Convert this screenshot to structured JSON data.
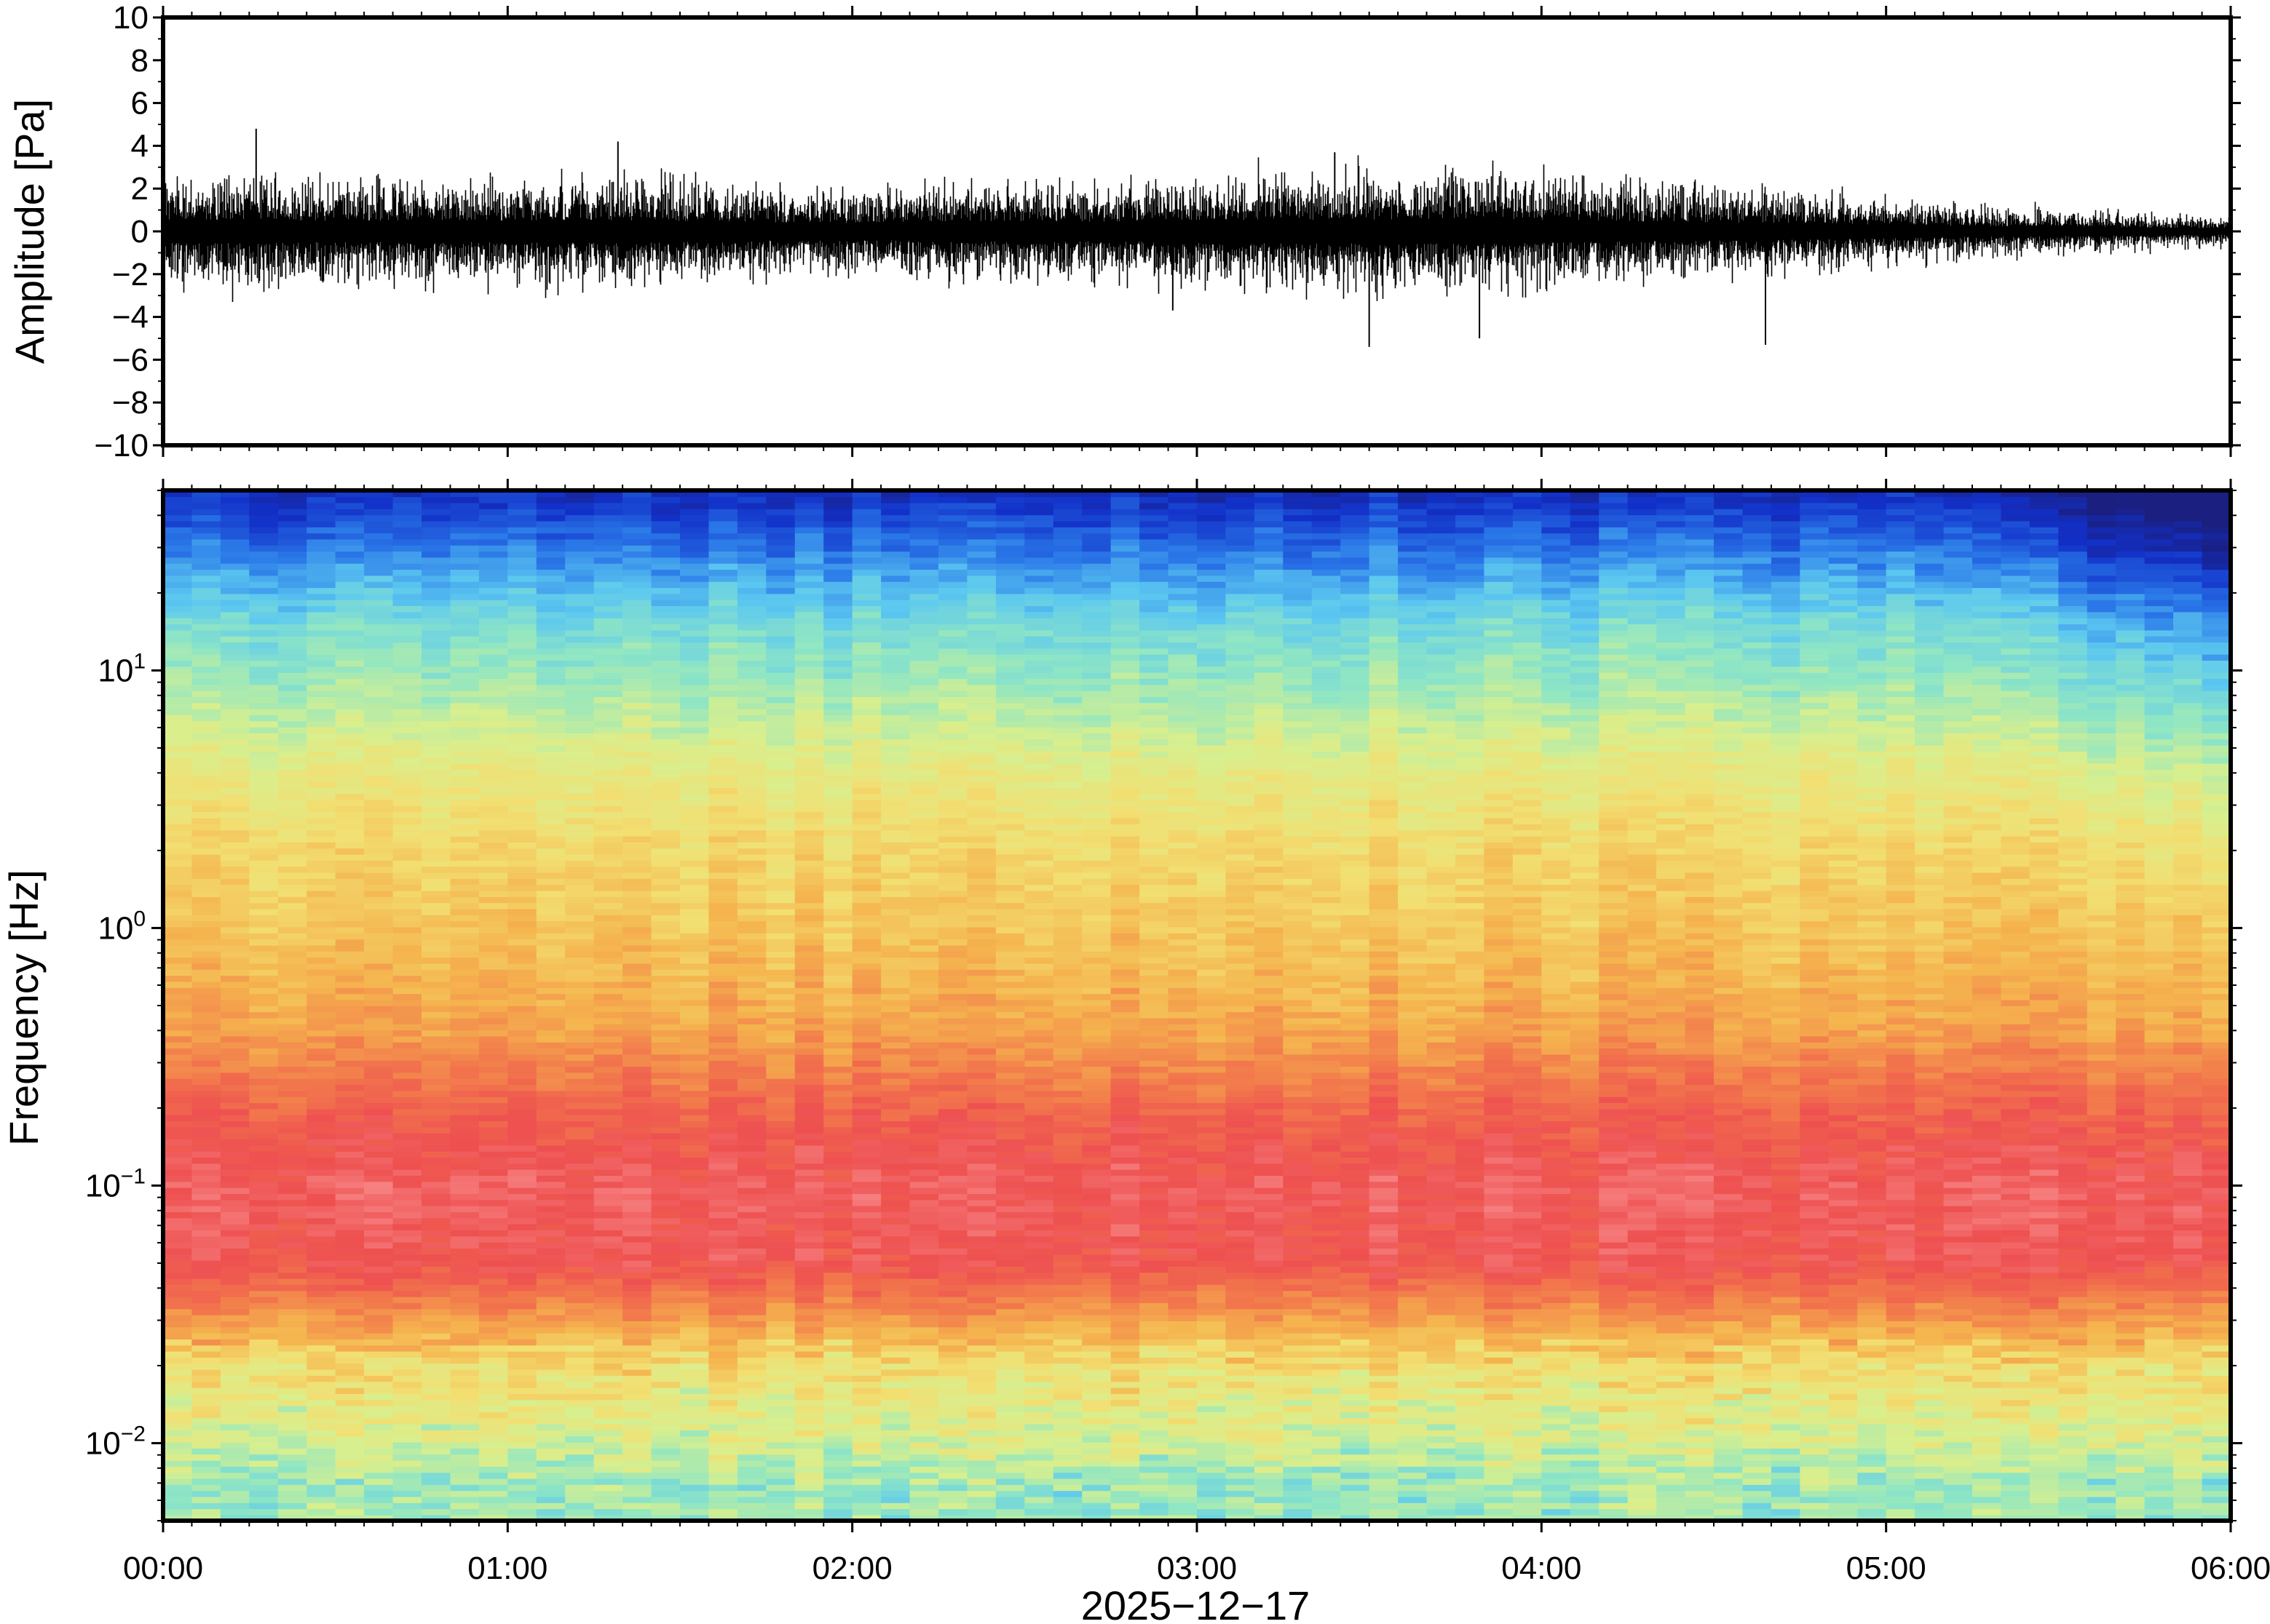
{
  "chart_data": [
    {
      "type": "line",
      "ylabel": "Amplitude [Pa]",
      "ylim": [
        -10,
        10
      ],
      "yticks": [
        "10",
        "8",
        "6",
        "4",
        "2",
        "0",
        "−2",
        "−4",
        "−6",
        "−8",
        "−10"
      ],
      "ytick_values": [
        10,
        8,
        6,
        4,
        2,
        0,
        -2,
        -4,
        -6,
        -8,
        -10
      ],
      "xlim_hours": [
        0,
        6
      ],
      "series": [
        {
          "envelope_hours": [
            0,
            0.25,
            0.5,
            0.75,
            1,
            1.25,
            1.5,
            1.75,
            2,
            2.25,
            2.5,
            2.75,
            3,
            3.25,
            3.5,
            3.75,
            4,
            4.25,
            4.5,
            4.75,
            5,
            5.25,
            5.5,
            5.75,
            6
          ],
          "typical_amplitude_pa": [
            1.5,
            1.6,
            1.4,
            1.4,
            1.4,
            1.5,
            1.4,
            1.2,
            1.1,
            1.3,
            1.3,
            1.3,
            1.5,
            1.5,
            1.6,
            1.6,
            1.5,
            1.3,
            1.2,
            1.1,
            0.9,
            0.7,
            0.6,
            0.5,
            0.4
          ],
          "peaks": [
            {
              "t_hours": 0.27,
              "value": 4.8
            },
            {
              "t_hours": 1.32,
              "value": 4.2
            },
            {
              "t_hours": 3.5,
              "value": -5.4
            },
            {
              "t_hours": 3.82,
              "value": -5.0
            },
            {
              "t_hours": 4.65,
              "value": -5.3
            },
            {
              "t_hours": 3.4,
              "value": 3.7
            },
            {
              "t_hours": 2.93,
              "value": -3.7
            }
          ]
        }
      ]
    },
    {
      "type": "heatmap",
      "ylabel": "Frequency [Hz]",
      "yscale": "log",
      "ylim_hz": [
        0.005,
        50
      ],
      "yticks": [
        {
          "base": "10",
          "exp": "1",
          "value": 10
        },
        {
          "base": "10",
          "exp": "0",
          "value": 1
        },
        {
          "base": "10",
          "exp": "−1",
          "value": 0.1
        },
        {
          "base": "10",
          "exp": "−2",
          "value": 0.01
        }
      ],
      "xlabel": "2025−12−17",
      "xticks": [
        "00:00",
        "01:00",
        "02:00",
        "03:00",
        "04:00",
        "05:00",
        "06:00"
      ],
      "xlim_hours": [
        0,
        6
      ],
      "colormap": [
        "#1a1f80",
        "#1230c8",
        "#2a78e8",
        "#5cc8f0",
        "#8fe6c4",
        "#d8ef8e",
        "#f2df72",
        "#f5b44e",
        "#f27a4c",
        "#ee5050",
        "#f88888"
      ],
      "power_levels_by_frequency": [
        {
          "freq_hz": 50,
          "level": 0.08
        },
        {
          "freq_hz": 30,
          "level": 0.2
        },
        {
          "freq_hz": 15,
          "level": 0.36
        },
        {
          "freq_hz": 8,
          "level": 0.44
        },
        {
          "freq_hz": 4,
          "level": 0.55
        },
        {
          "freq_hz": 2,
          "level": 0.62
        },
        {
          "freq_hz": 1,
          "level": 0.66
        },
        {
          "freq_hz": 0.4,
          "level": 0.73
        },
        {
          "freq_hz": 0.2,
          "level": 0.85
        },
        {
          "freq_hz": 0.1,
          "level": 0.93
        },
        {
          "freq_hz": 0.05,
          "level": 0.9
        },
        {
          "freq_hz": 0.03,
          "level": 0.74
        },
        {
          "freq_hz": 0.02,
          "level": 0.6
        },
        {
          "freq_hz": 0.01,
          "level": 0.5
        },
        {
          "freq_hz": 0.007,
          "level": 0.42
        }
      ],
      "high_frequency_decay_after_hours": 5.1
    }
  ]
}
